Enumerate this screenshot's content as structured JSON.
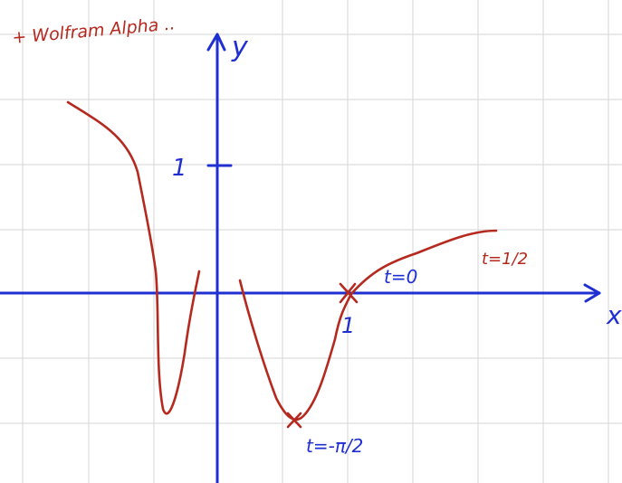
{
  "note": "+ Wolfram Alpha ..",
  "axes": {
    "x_label": "x",
    "y_label": "y",
    "y_tick": "1",
    "x_tick": "1"
  },
  "annotations": {
    "t0": "t=0",
    "t_half": "t=1/2",
    "t_neg_pi_half": "t=-π/2"
  },
  "colors": {
    "axis": "#1f2fd1",
    "curve": "#b5291f",
    "grid": "#d6d6d6"
  }
}
